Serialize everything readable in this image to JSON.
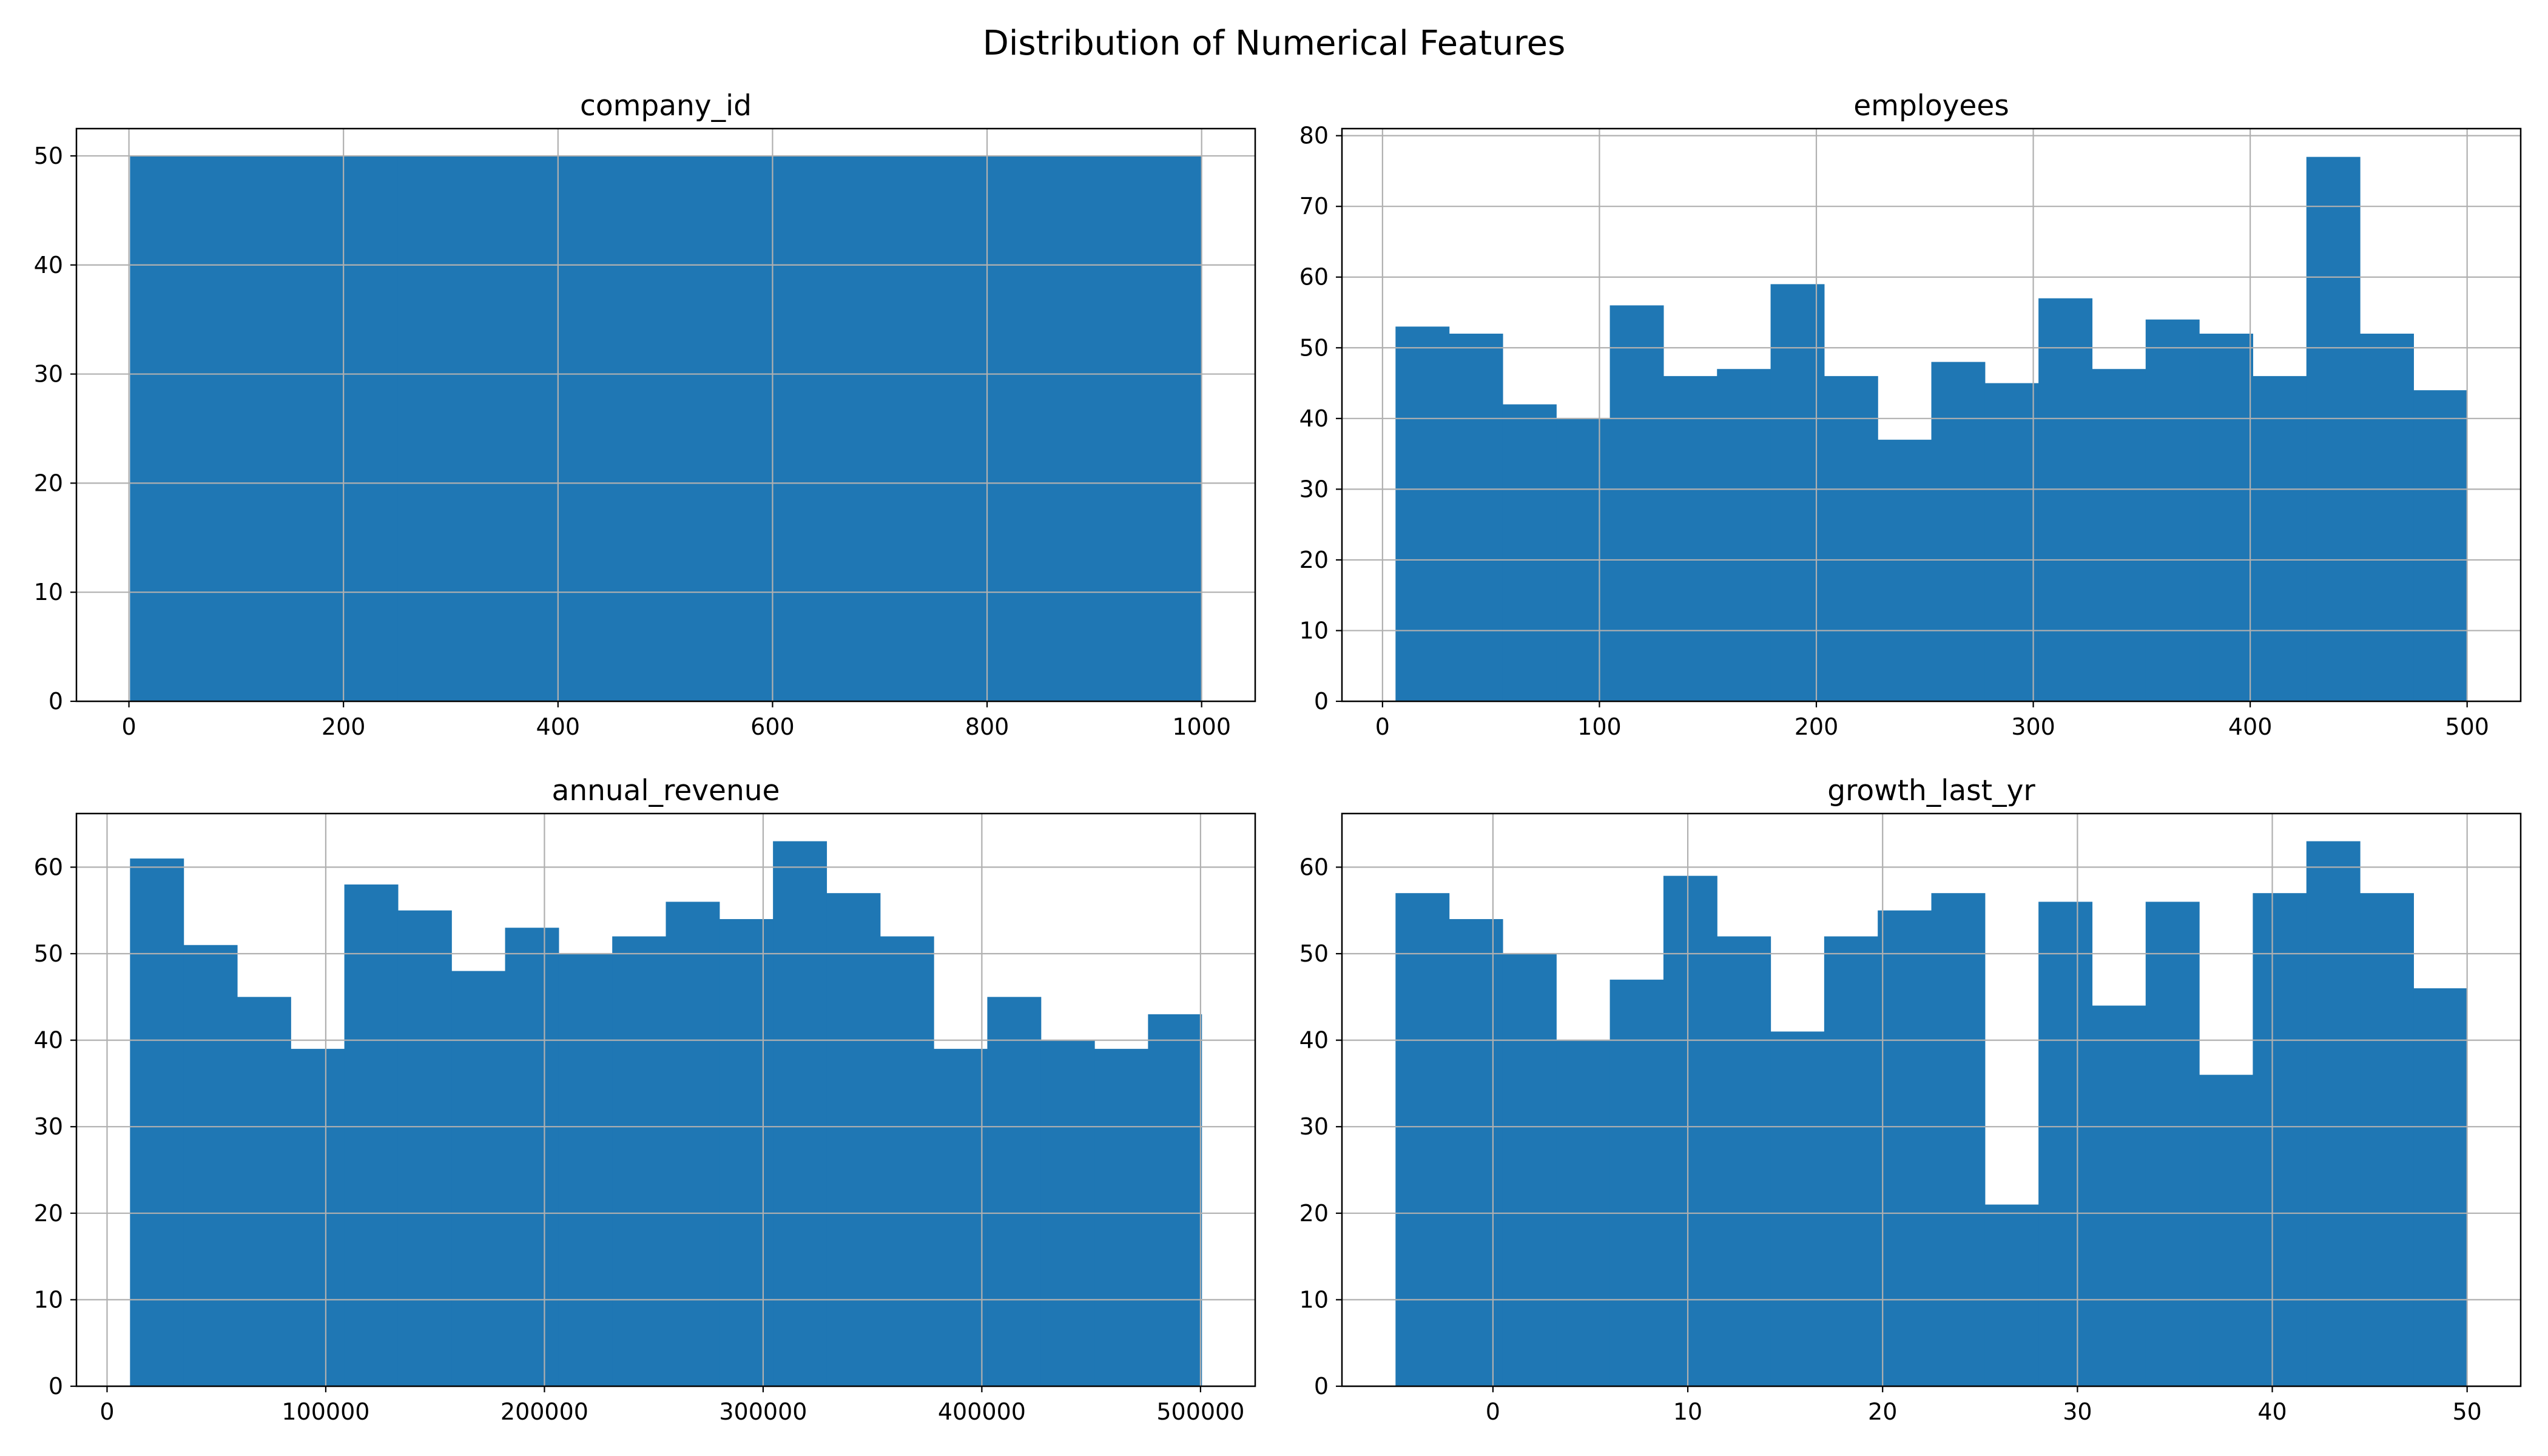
{
  "figure": {
    "title": "Distribution of Numerical Features"
  },
  "colors": {
    "bar_fill": "#1f77b4",
    "grid": "#b0b0b0",
    "axes_edge": "#000000",
    "background": "#ffffff"
  },
  "chart_data": [
    {
      "type": "bar",
      "title": "company_id",
      "xlabel": "",
      "ylabel": "",
      "grid": true,
      "histogram": true,
      "bin_edges": [
        1,
        250.75,
        500.5,
        750.25,
        1000
      ],
      "values": [
        50,
        50,
        50,
        50
      ],
      "xlim": [
        -48.95,
        1049.95
      ],
      "ylim": [
        0,
        52.5
      ],
      "xticks": [
        0,
        200,
        400,
        600,
        800,
        1000
      ],
      "xtick_labels": [
        "0",
        "200",
        "400",
        "600",
        "800",
        "1000"
      ],
      "yticks": [
        0,
        10,
        20,
        30,
        40,
        50
      ],
      "ytick_labels": [
        "0",
        "10",
        "20",
        "30",
        "40",
        "50"
      ]
    },
    {
      "type": "bar",
      "title": "employees",
      "xlabel": "",
      "ylabel": "",
      "grid": true,
      "histogram": true,
      "bin_edges": [
        6,
        30.7,
        55.4,
        80.1,
        104.8,
        129.5,
        154.2,
        178.9,
        203.6,
        228.3,
        253,
        277.7,
        302.4,
        327.1,
        351.8,
        376.5,
        401.2,
        425.9,
        450.6,
        475.3,
        500
      ],
      "values": [
        53,
        52,
        42,
        40,
        56,
        46,
        47,
        59,
        46,
        37,
        48,
        45,
        57,
        47,
        54,
        52,
        46,
        77,
        52,
        44
      ],
      "xlim": [
        -18.7,
        524.7
      ],
      "ylim": [
        0,
        81
      ],
      "xticks": [
        0,
        100,
        200,
        300,
        400,
        500
      ],
      "xtick_labels": [
        "0",
        "100",
        "200",
        "300",
        "400",
        "500"
      ],
      "yticks": [
        0,
        10,
        20,
        30,
        40,
        50,
        60,
        70,
        80
      ],
      "ytick_labels": [
        "0",
        "10",
        "20",
        "30",
        "40",
        "50",
        "60",
        "70",
        "80"
      ]
    },
    {
      "type": "bar",
      "title": "annual_revenue",
      "xlabel": "",
      "ylabel": "",
      "grid": true,
      "histogram": true,
      "bin_edges": [
        10500,
        35000,
        59500,
        84000,
        108500,
        133000,
        157500,
        182000,
        206500,
        231000,
        255500,
        280000,
        304500,
        329000,
        353500,
        378000,
        402500,
        427000,
        451500,
        476000,
        500500
      ],
      "values": [
        61,
        51,
        45,
        39,
        58,
        55,
        48,
        53,
        50,
        52,
        56,
        54,
        63,
        57,
        52,
        39,
        45,
        40,
        39,
        43
      ],
      "xlim": [
        -14000,
        525000
      ],
      "ylim": [
        0,
        66.2
      ],
      "xticks": [
        0,
        100000,
        200000,
        300000,
        400000,
        500000
      ],
      "xtick_labels": [
        "0",
        "100000",
        "200000",
        "300000",
        "400000",
        "500000"
      ],
      "yticks": [
        0,
        10,
        20,
        30,
        40,
        50,
        60
      ],
      "ytick_labels": [
        "0",
        "10",
        "20",
        "30",
        "40",
        "50",
        "60"
      ]
    },
    {
      "type": "bar",
      "title": "growth_last_yr",
      "xlabel": "",
      "ylabel": "",
      "grid": true,
      "histogram": true,
      "bin_edges": [
        -5,
        -2.25,
        0.5,
        3.25,
        6,
        8.75,
        11.5,
        14.25,
        17,
        19.75,
        22.5,
        25.25,
        28,
        30.75,
        33.5,
        36.25,
        39,
        41.75,
        44.5,
        47.25,
        50
      ],
      "values": [
        57,
        54,
        50,
        40,
        47,
        59,
        52,
        41,
        52,
        55,
        57,
        21,
        56,
        44,
        56,
        36,
        57,
        63,
        57,
        46
      ],
      "xlim": [
        -7.75,
        52.75
      ],
      "ylim": [
        0,
        66.2
      ],
      "xticks": [
        0,
        10,
        20,
        30,
        40,
        50
      ],
      "xtick_labels": [
        "0",
        "10",
        "20",
        "30",
        "40",
        "50"
      ],
      "yticks": [
        0,
        10,
        20,
        30,
        40,
        50,
        60
      ],
      "ytick_labels": [
        "0",
        "10",
        "20",
        "30",
        "40",
        "50",
        "60"
      ]
    }
  ]
}
